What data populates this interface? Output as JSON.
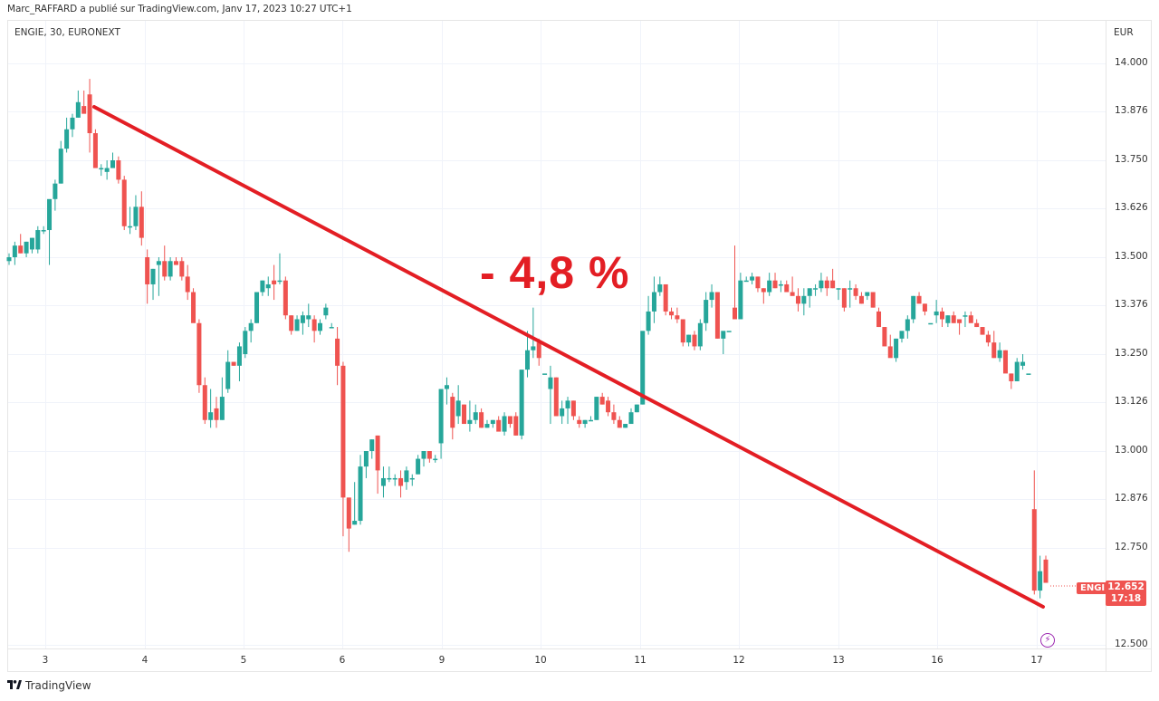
{
  "header": {
    "publisher_line": "Marc_RAFFARD a publié sur TradingView.com, Janv 17, 2023 10:27 UTC+1",
    "symbol_line": "ENGIE, 30, EURONEXT",
    "currency": "EUR"
  },
  "annotation": {
    "text": "- 4,8 %",
    "color": "#e31e24"
  },
  "last_price": {
    "symbol_badge": "ENGI",
    "price": "12.652",
    "countdown": "17:18",
    "color": "#ef5350"
  },
  "footer": {
    "brand": "TradingView",
    "logo_glyph": "17"
  },
  "colors": {
    "up": "#26a69a",
    "down": "#ef5350",
    "trendline": "#e31e24",
    "grid": "#f0f3fa",
    "event": "#9c27b0"
  },
  "chart_data": {
    "type": "candlestick",
    "title": "ENGIE, 30, EURONEXT",
    "interval": "30",
    "xlabel": "",
    "ylabel": "EUR",
    "ylim": [
      12.5,
      14.05
    ],
    "grid": true,
    "y_ticks": [
      "14.000",
      "13.876",
      "13.750",
      "13.626",
      "13.500",
      "13.376",
      "13.250",
      "13.126",
      "13.000",
      "12.876",
      "12.750",
      "12.500"
    ],
    "x_ticks": [
      "3",
      "4",
      "5",
      "6",
      "9",
      "10",
      "11",
      "12",
      "13",
      "16",
      "17"
    ],
    "trendline": {
      "from": [
        13.89,
        "3"
      ],
      "to": [
        12.61,
        "17"
      ],
      "label": "- 4,8 %"
    },
    "last_value": 12.652,
    "candles": [
      [
        13.49,
        13.51,
        13.48,
        13.5
      ],
      [
        13.5,
        13.54,
        13.48,
        13.53
      ],
      [
        13.53,
        13.56,
        13.51,
        13.51
      ],
      [
        13.51,
        13.54,
        13.5,
        13.54
      ],
      [
        13.52,
        13.55,
        13.51,
        13.55
      ],
      [
        13.52,
        13.58,
        13.51,
        13.57
      ],
      [
        13.57,
        13.58,
        13.56,
        13.57
      ],
      [
        13.57,
        13.59,
        13.48,
        13.65
      ],
      [
        13.65,
        13.7,
        13.62,
        13.69
      ],
      [
        13.69,
        13.8,
        13.69,
        13.78
      ],
      [
        13.78,
        13.86,
        13.77,
        13.83
      ],
      [
        13.83,
        13.87,
        13.81,
        13.86
      ],
      [
        13.86,
        13.93,
        13.86,
        13.9
      ],
      [
        13.89,
        13.93,
        13.89,
        13.87
      ],
      [
        13.92,
        13.96,
        13.77,
        13.82
      ],
      [
        13.82,
        13.83,
        13.75,
        13.73
      ],
      [
        13.73,
        13.74,
        13.71,
        13.73
      ],
      [
        13.72,
        13.75,
        13.7,
        13.73
      ],
      [
        13.73,
        13.77,
        13.73,
        13.75
      ],
      [
        13.75,
        13.76,
        13.69,
        13.7
      ],
      [
        13.7,
        13.71,
        13.57,
        13.58
      ],
      [
        13.58,
        13.63,
        13.56,
        13.58
      ],
      [
        13.58,
        13.66,
        13.57,
        13.63
      ],
      [
        13.63,
        13.67,
        13.53,
        13.55
      ],
      [
        13.5,
        13.52,
        13.38,
        13.43
      ],
      [
        13.43,
        13.47,
        13.39,
        13.47
      ],
      [
        13.48,
        13.5,
        13.4,
        13.49
      ],
      [
        13.49,
        13.53,
        13.44,
        13.45
      ],
      [
        13.45,
        13.5,
        13.44,
        13.49
      ],
      [
        13.49,
        13.5,
        13.48,
        13.48
      ],
      [
        13.49,
        13.5,
        13.44,
        13.45
      ],
      [
        13.45,
        13.48,
        13.39,
        13.41
      ],
      [
        13.41,
        13.42,
        13.36,
        13.33
      ],
      [
        13.33,
        13.34,
        13.15,
        13.17
      ],
      [
        13.17,
        13.19,
        13.07,
        13.08
      ],
      [
        13.08,
        13.16,
        13.06,
        13.1
      ],
      [
        13.11,
        13.14,
        13.06,
        13.08
      ],
      [
        13.08,
        13.19,
        13.08,
        13.14
      ],
      [
        13.16,
        13.26,
        13.15,
        13.23
      ],
      [
        13.23,
        13.23,
        13.22,
        13.22
      ],
      [
        13.22,
        13.28,
        13.18,
        13.27
      ],
      [
        13.25,
        13.32,
        13.24,
        13.31
      ],
      [
        13.31,
        13.34,
        13.28,
        13.33
      ],
      [
        13.33,
        13.4,
        13.33,
        13.41
      ],
      [
        13.41,
        13.44,
        13.4,
        13.44
      ],
      [
        13.42,
        13.45,
        13.4,
        13.43
      ],
      [
        13.44,
        13.48,
        13.39,
        13.43
      ],
      [
        13.44,
        13.51,
        13.43,
        13.44
      ],
      [
        13.44,
        13.45,
        13.34,
        13.35
      ],
      [
        13.35,
        13.35,
        13.3,
        13.31
      ],
      [
        13.31,
        13.35,
        13.31,
        13.34
      ],
      [
        13.33,
        13.36,
        13.3,
        13.35
      ],
      [
        13.34,
        13.38,
        13.32,
        13.35
      ],
      [
        13.34,
        13.35,
        13.28,
        13.31
      ],
      [
        13.31,
        13.34,
        13.3,
        13.33
      ],
      [
        13.35,
        13.38,
        13.34,
        13.37
      ],
      [
        13.32,
        13.33,
        13.32,
        13.32
      ],
      [
        13.29,
        13.32,
        13.17,
        13.22
      ],
      [
        13.22,
        13.23,
        12.78,
        12.88
      ],
      [
        12.88,
        12.88,
        12.74,
        12.8
      ],
      [
        12.81,
        12.92,
        12.81,
        12.82
      ],
      [
        12.82,
        12.99,
        12.81,
        12.96
      ],
      [
        12.96,
        13.0,
        12.93,
        13.0
      ],
      [
        13.0,
        13.03,
        12.98,
        13.03
      ],
      [
        13.04,
        13.04,
        12.89,
        12.95
      ],
      [
        12.91,
        12.96,
        12.88,
        12.93
      ],
      [
        12.93,
        12.96,
        12.92,
        12.93
      ],
      [
        12.93,
        12.94,
        12.91,
        12.93
      ],
      [
        12.93,
        12.95,
        12.88,
        12.91
      ],
      [
        12.92,
        12.96,
        12.9,
        12.95
      ],
      [
        12.93,
        12.94,
        12.91,
        12.93
      ],
      [
        12.94,
        12.99,
        12.94,
        12.98
      ],
      [
        12.98,
        13.0,
        12.96,
        13.0
      ],
      [
        13.0,
        13.0,
        12.97,
        12.98
      ],
      [
        12.98,
        12.99,
        12.97,
        12.98
      ],
      [
        13.02,
        13.1,
        12.98,
        13.16
      ],
      [
        13.16,
        13.19,
        13.12,
        13.17
      ],
      [
        13.14,
        13.15,
        13.03,
        13.06
      ],
      [
        13.09,
        13.17,
        13.07,
        13.13
      ],
      [
        13.12,
        13.12,
        13.07,
        13.07
      ],
      [
        13.07,
        13.13,
        13.05,
        13.08
      ],
      [
        13.08,
        13.12,
        13.07,
        13.1
      ],
      [
        13.1,
        13.11,
        13.06,
        13.06
      ],
      [
        13.06,
        13.08,
        13.06,
        13.07
      ],
      [
        13.07,
        13.08,
        13.06,
        13.08
      ],
      [
        13.08,
        13.09,
        13.07,
        13.05
      ],
      [
        13.05,
        13.1,
        13.04,
        13.09
      ],
      [
        13.09,
        13.09,
        13.06,
        13.07
      ],
      [
        13.09,
        13.1,
        13.04,
        13.04
      ],
      [
        13.04,
        13.2,
        13.03,
        13.21
      ],
      [
        13.21,
        13.31,
        13.19,
        13.26
      ],
      [
        13.26,
        13.37,
        13.24,
        13.27
      ],
      [
        13.28,
        13.29,
        13.22,
        13.24
      ],
      [
        13.2,
        13.2,
        13.2,
        13.2
      ],
      [
        13.16,
        13.22,
        13.07,
        13.19
      ],
      [
        13.19,
        13.19,
        13.09,
        13.09
      ],
      [
        13.09,
        13.13,
        13.07,
        13.11
      ],
      [
        13.11,
        13.14,
        13.07,
        13.13
      ],
      [
        13.13,
        13.13,
        13.08,
        13.09
      ],
      [
        13.08,
        13.09,
        13.06,
        13.07
      ],
      [
        13.07,
        13.08,
        13.06,
        13.08
      ],
      [
        13.08,
        13.09,
        13.08,
        13.08
      ],
      [
        13.08,
        13.14,
        13.08,
        13.14
      ],
      [
        13.14,
        13.15,
        13.12,
        13.12
      ],
      [
        13.13,
        13.14,
        13.09,
        13.1
      ],
      [
        13.1,
        13.12,
        13.07,
        13.08
      ],
      [
        13.08,
        13.09,
        13.06,
        13.06
      ],
      [
        13.06,
        13.07,
        13.06,
        13.07
      ],
      [
        13.07,
        13.11,
        13.07,
        13.1
      ],
      [
        13.1,
        13.12,
        13.1,
        13.12
      ],
      [
        13.12,
        13.3,
        13.12,
        13.31
      ],
      [
        13.31,
        13.4,
        13.3,
        13.36
      ],
      [
        13.36,
        13.45,
        13.33,
        13.41
      ],
      [
        13.41,
        13.45,
        13.4,
        13.43
      ],
      [
        13.43,
        13.43,
        13.35,
        13.36
      ],
      [
        13.36,
        13.37,
        13.34,
        13.35
      ],
      [
        13.35,
        13.37,
        13.33,
        13.34
      ],
      [
        13.34,
        13.34,
        13.27,
        13.28
      ],
      [
        13.28,
        13.3,
        13.27,
        13.3
      ],
      [
        13.3,
        13.31,
        13.26,
        13.27
      ],
      [
        13.27,
        13.34,
        13.26,
        13.33
      ],
      [
        13.33,
        13.41,
        13.31,
        13.39
      ],
      [
        13.39,
        13.43,
        13.37,
        13.41
      ],
      [
        13.41,
        13.41,
        13.29,
        13.29
      ],
      [
        13.29,
        13.3,
        13.25,
        13.31
      ],
      [
        13.31,
        13.31,
        13.31,
        13.31
      ],
      [
        13.37,
        13.53,
        13.37,
        13.34
      ],
      [
        13.34,
        13.46,
        13.34,
        13.44
      ],
      [
        13.44,
        13.45,
        13.44,
        13.44
      ],
      [
        13.44,
        13.46,
        13.43,
        13.45
      ],
      [
        13.45,
        13.45,
        13.41,
        13.42
      ],
      [
        13.42,
        13.42,
        13.38,
        13.41
      ],
      [
        13.41,
        13.46,
        13.4,
        13.44
      ],
      [
        13.44,
        13.46,
        13.42,
        13.42
      ],
      [
        13.43,
        13.44,
        13.41,
        13.43
      ],
      [
        13.43,
        13.44,
        13.41,
        13.41
      ],
      [
        13.41,
        13.45,
        13.41,
        13.4
      ],
      [
        13.4,
        13.42,
        13.36,
        13.38
      ],
      [
        13.38,
        13.42,
        13.35,
        13.4
      ],
      [
        13.4,
        13.4,
        13.37,
        13.42
      ],
      [
        13.42,
        13.43,
        13.4,
        13.42
      ],
      [
        13.42,
        13.46,
        13.41,
        13.44
      ],
      [
        13.44,
        13.45,
        13.4,
        13.42
      ],
      [
        13.44,
        13.47,
        13.42,
        13.42
      ],
      [
        13.42,
        13.42,
        13.39,
        13.42
      ],
      [
        13.42,
        13.42,
        13.36,
        13.37
      ],
      [
        13.42,
        13.44,
        13.37,
        13.42
      ],
      [
        13.42,
        13.43,
        13.39,
        13.4
      ],
      [
        13.4,
        13.41,
        13.38,
        13.38
      ],
      [
        13.4,
        13.41,
        13.39,
        13.41
      ],
      [
        13.41,
        13.41,
        13.37,
        13.37
      ],
      [
        13.36,
        13.37,
        13.32,
        13.32
      ],
      [
        13.32,
        13.32,
        13.27,
        13.27
      ],
      [
        13.27,
        13.3,
        13.26,
        13.24
      ],
      [
        13.24,
        13.29,
        13.23,
        13.29
      ],
      [
        13.29,
        13.3,
        13.28,
        13.31
      ],
      [
        13.31,
        13.35,
        13.29,
        13.34
      ],
      [
        13.34,
        13.4,
        13.33,
        13.4
      ],
      [
        13.4,
        13.41,
        13.39,
        13.38
      ],
      [
        13.38,
        13.38,
        13.35,
        13.36
      ],
      [
        13.33,
        13.33,
        13.33,
        13.33
      ],
      [
        13.35,
        13.39,
        13.33,
        13.36
      ],
      [
        13.36,
        13.37,
        13.32,
        13.34
      ],
      [
        13.33,
        13.35,
        13.32,
        13.35
      ],
      [
        13.35,
        13.36,
        13.33,
        13.33
      ],
      [
        13.34,
        13.34,
        13.3,
        13.33
      ],
      [
        13.35,
        13.36,
        13.32,
        13.35
      ],
      [
        13.35,
        13.36,
        13.34,
        13.33
      ],
      [
        13.33,
        13.34,
        13.32,
        13.32
      ],
      [
        13.32,
        13.32,
        13.3,
        13.3
      ],
      [
        13.3,
        13.31,
        13.27,
        13.28
      ],
      [
        13.28,
        13.31,
        13.24,
        13.24
      ],
      [
        13.24,
        13.28,
        13.23,
        13.26
      ],
      [
        13.26,
        13.26,
        13.21,
        13.2
      ],
      [
        13.2,
        13.2,
        13.16,
        13.18
      ],
      [
        13.18,
        13.24,
        13.18,
        13.23
      ],
      [
        13.22,
        13.25,
        13.21,
        13.23
      ],
      [
        13.2,
        13.2,
        13.2,
        13.2
      ],
      [
        12.85,
        12.95,
        12.63,
        12.64
      ],
      [
        12.64,
        12.73,
        12.62,
        12.69
      ],
      [
        12.72,
        12.73,
        12.66,
        12.66
      ]
    ]
  }
}
